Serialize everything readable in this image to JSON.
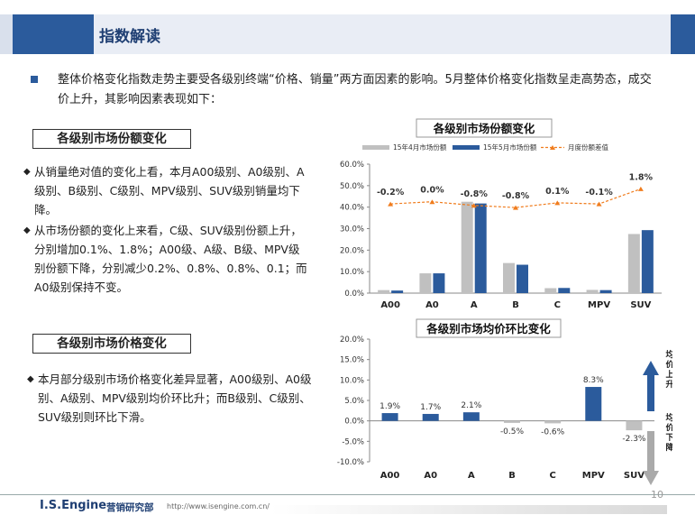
{
  "header": {
    "title": "指数解读"
  },
  "intro": {
    "text": "整体价格变化指数走势主要受各级别终端“价格、销量”两方面因素的影响。5月整体价格变化指数呈走高势态，成交价上升，其影响因素表现如下："
  },
  "section1": {
    "title": "各级别市场份额变化",
    "bullets": [
      "从销量绝对值的变化上看，本月A00级别、A0级别、A级别、B级别、C级别、MPV级别、SUV级别销量均下降。",
      "从市场份额的变化上来看，C级、SUV级别份额上升，分别增加0.1%、1.8%；A00级、A级、B级、MPV级别份额下降，分别减少0.2%、0.8%、0.8%、0.1；而A0级别保持不变。"
    ]
  },
  "section2": {
    "title": "各级别市场价格变化",
    "bullets": [
      "本月部分级别市场价格变化差异显著，A00级别、A0级别、A级别、MPV级别均价环比升；而B级别、C级别、SUV级别则环比下滑。"
    ]
  },
  "chart_data": [
    {
      "type": "bar",
      "title": "各级别市场份额变化",
      "categories": [
        "A00",
        "A0",
        "A",
        "B",
        "C",
        "MPV",
        "SUV"
      ],
      "series": [
        {
          "name": "15年4月市场份额",
          "values": [
            1.4,
            9.2,
            42.5,
            14.0,
            2.3,
            1.5,
            27.5
          ],
          "color": "#c0c0c0"
        },
        {
          "name": "15年5月市场份额",
          "values": [
            1.2,
            9.2,
            41.7,
            13.2,
            2.4,
            1.4,
            29.3
          ],
          "color": "#2b5b9c"
        },
        {
          "name": "月度份额差值",
          "type": "line",
          "values": [
            41.5,
            42.5,
            40.8,
            39.8,
            42.0,
            41.5,
            48.5
          ],
          "color": "#f07c1d"
        }
      ],
      "data_labels": [
        "-0.2%",
        "0.0%",
        "-0.8%",
        "-0.8%",
        "0.1%",
        "-0.1%",
        "1.8%"
      ],
      "yticks": [
        "0.0%",
        "10.0%",
        "20.0%",
        "30.0%",
        "40.0%",
        "50.0%",
        "60.0%"
      ],
      "ylim": [
        0,
        60
      ],
      "legend": "top"
    },
    {
      "type": "bar",
      "title": "各级别市场均价环比变化",
      "categories": [
        "A00",
        "A0",
        "A",
        "B",
        "C",
        "MPV",
        "SUV"
      ],
      "series": [
        {
          "name": "",
          "values": [
            1.9,
            1.7,
            2.1,
            -0.5,
            -0.6,
            8.3,
            -2.3
          ],
          "color": "#2b5b9c"
        }
      ],
      "data_labels": [
        "1.9%",
        "1.7%",
        "2.1%",
        "-0.5%",
        "-0.6%",
        "8.3%",
        "-2.3%"
      ],
      "yticks": [
        "-10.0%",
        "-5.0%",
        "0.0%",
        "5.0%",
        "10.0%",
        "15.0%",
        "20.0%"
      ],
      "ylim": [
        -10,
        20
      ],
      "annotations": {
        "up": "均价上升",
        "down": "均价下降"
      }
    }
  ],
  "footer": {
    "brand": "I.S.Engine",
    "dept": "营销研究部",
    "url": "http://www.isengine.com.cn/",
    "page": "10"
  }
}
